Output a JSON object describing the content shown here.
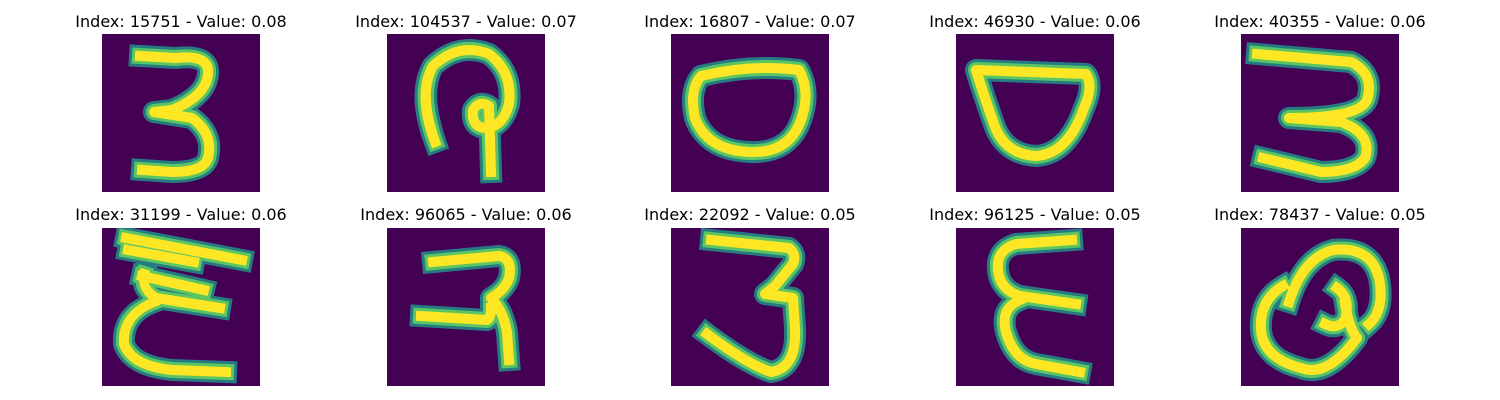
{
  "chart_data": {
    "type": "heatmap",
    "colormap": "viridis",
    "axes_visible": false,
    "grid": false,
    "title_template": "Index: {index} - Value: {value}",
    "panels": [
      {
        "index": 15751,
        "value": "0.08",
        "title": "Index: 15751 - Value: 0.08",
        "glyph": "digit-three"
      },
      {
        "index": 104537,
        "value": "0.07",
        "title": "Index: 104537 - Value: 0.07",
        "glyph": "hooked-loop"
      },
      {
        "index": 16807,
        "value": "0.07",
        "title": "Index: 16807 - Value: 0.07",
        "glyph": "flat-top-oval"
      },
      {
        "index": 46930,
        "value": "0.06",
        "title": "Index: 46930 - Value: 0.06",
        "glyph": "cup-shape"
      },
      {
        "index": 40355,
        "value": "0.06",
        "title": "Index: 40355 - Value: 0.06",
        "glyph": "digit-three-flat"
      },
      {
        "index": 31199,
        "value": "0.06",
        "title": "Index: 31199 - Value: 0.06",
        "glyph": "zigzag-e"
      },
      {
        "index": 96065,
        "value": "0.06",
        "title": "Index: 96065 - Value: 0.06",
        "glyph": "reversed-r"
      },
      {
        "index": 22092,
        "value": "0.05",
        "title": "Index: 22092 - Value: 0.05",
        "glyph": "tall-three"
      },
      {
        "index": 96125,
        "value": "0.05",
        "title": "Index: 96125 - Value: 0.05",
        "glyph": "epsilon"
      },
      {
        "index": 78437,
        "value": "0.05",
        "title": "Index: 78437 - Value: 0.05",
        "glyph": "looped-q"
      }
    ]
  },
  "colors": {
    "background": "#440154",
    "stroke_core": "#fde725",
    "stroke_mid": "#5ec962",
    "stroke_edge": "#21918c"
  }
}
